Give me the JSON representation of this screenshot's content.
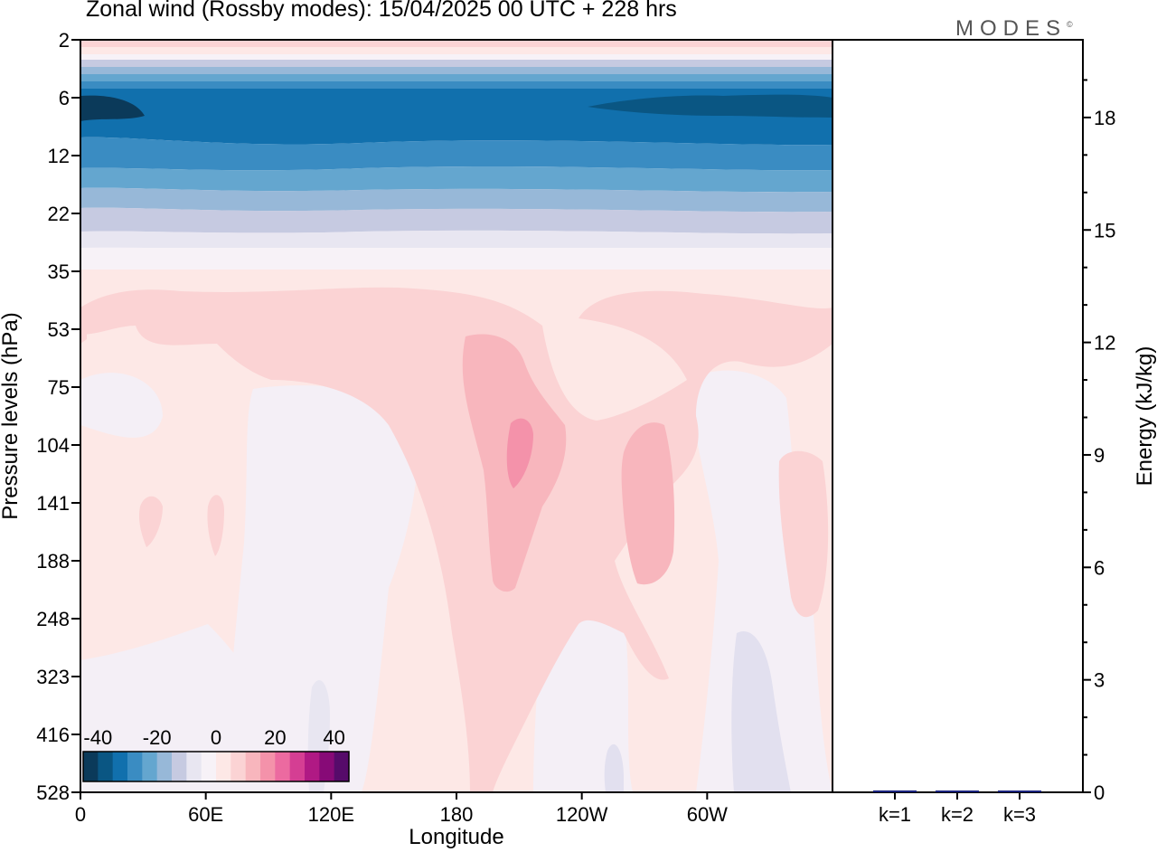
{
  "header": {
    "title": "Zonal wind (Rossby modes):  15/04/2025  00 UTC  + 228 hrs",
    "brand": "MODES",
    "brand_mark": "©"
  },
  "chart_data": [
    {
      "type": "heatmap",
      "xlabel": "Longitude",
      "ylabel": "Pressure levels (hPa)",
      "x_ticks": [
        "0",
        "60E",
        "120E",
        "180",
        "120W",
        "60W"
      ],
      "x_tick_values": [
        0,
        60,
        120,
        180,
        240,
        300
      ],
      "xlim": [
        0,
        360
      ],
      "y_ticks": [
        "2",
        "6",
        "12",
        "22",
        "35",
        "53",
        "75",
        "104",
        "141",
        "188",
        "248",
        "323",
        "416",
        "528"
      ],
      "colorbar": {
        "labels": [
          "-40",
          "-20",
          "0",
          "20",
          "40"
        ],
        "label_values": [
          -40,
          -20,
          0,
          20,
          40
        ],
        "range": [
          -45,
          45
        ],
        "step": 5,
        "colors": [
          "#0b3a5a",
          "#0a5683",
          "#1170ad",
          "#3a8cc2",
          "#64a6cf",
          "#97b8d8",
          "#c6cae1",
          "#e8e6f1",
          "#f7f2f7",
          "#fde8e6",
          "#fbd3d4",
          "#f8b6bd",
          "#f492aa",
          "#ec6aa0",
          "#d53e93",
          "#b01984",
          "#870a77",
          "#560b6a"
        ]
      },
      "description_levels_ms": [
        -40,
        -35,
        -30,
        -25,
        -20,
        -15,
        -10,
        -5,
        0,
        5,
        10,
        15,
        20,
        25,
        30,
        35,
        40
      ],
      "bands": [
        {
          "top": "2",
          "bottom": "6",
          "value_range": [
            -20,
            10
          ]
        },
        {
          "top": "6",
          "bottom": "12",
          "value_range": [
            -40,
            -25
          ]
        },
        {
          "top": "12",
          "bottom": "22",
          "value_range": [
            -25,
            -10
          ]
        },
        {
          "top": "22",
          "bottom": "35",
          "value_range": [
            -10,
            0
          ]
        },
        {
          "top": "35",
          "bottom": "528",
          "value_range": [
            -5,
            15
          ]
        }
      ]
    },
    {
      "type": "bar",
      "ylabel": "Energy (kJ/kg)",
      "categories": [
        "k=1",
        "k=2",
        "k=3"
      ],
      "values": [
        0.05,
        0.03,
        0.03
      ],
      "ylim": [
        0,
        20
      ],
      "y_ticks": [
        "0",
        "3",
        "6",
        "9",
        "12",
        "15",
        "18"
      ],
      "y_tick_values": [
        0,
        3,
        6,
        9,
        12,
        15,
        18
      ]
    }
  ]
}
